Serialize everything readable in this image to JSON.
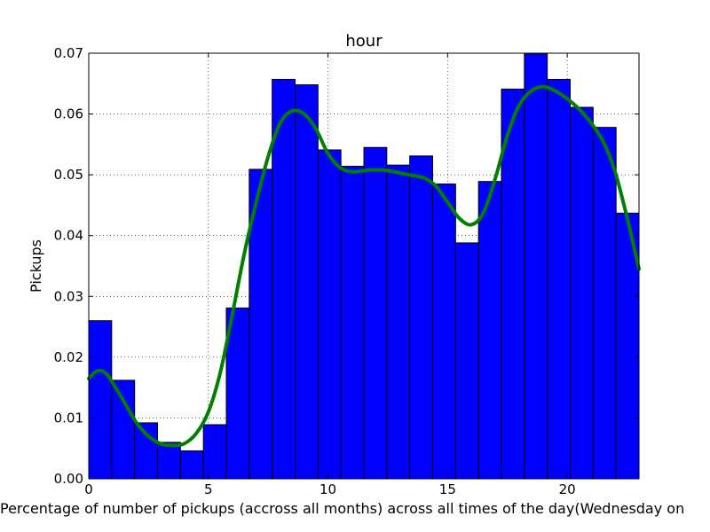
{
  "chart_data": {
    "type": "bar",
    "title": "hour",
    "xlabel": "Percentage of number of pickups (accross all months) across all times of the day(Wednesday on",
    "ylabel": "Pickups",
    "xlim": [
      0,
      23
    ],
    "ylim": [
      0,
      0.07
    ],
    "grid": true,
    "x_ticks": [
      0,
      5,
      10,
      15,
      20
    ],
    "x_tick_labels": [
      "0",
      "5",
      "10",
      "15",
      "20"
    ],
    "y_ticks": [
      0,
      0.01,
      0.02,
      0.03,
      0.04,
      0.05,
      0.06,
      0.07
    ],
    "y_tick_labels": [
      "0.00",
      "0.01",
      "0.02",
      "0.03",
      "0.04",
      "0.05",
      "0.06",
      "0.07"
    ],
    "bins": [
      {
        "x0": 0.0,
        "x1": 0.958,
        "value": 0.026
      },
      {
        "x0": 0.958,
        "x1": 1.917,
        "value": 0.0162
      },
      {
        "x0": 1.917,
        "x1": 2.875,
        "value": 0.0092
      },
      {
        "x0": 2.875,
        "x1": 3.833,
        "value": 0.006
      },
      {
        "x0": 3.833,
        "x1": 4.792,
        "value": 0.0046
      },
      {
        "x0": 4.792,
        "x1": 5.75,
        "value": 0.0089
      },
      {
        "x0": 5.75,
        "x1": 6.708,
        "value": 0.0281
      },
      {
        "x0": 6.708,
        "x1": 7.667,
        "value": 0.0509
      },
      {
        "x0": 7.667,
        "x1": 8.625,
        "value": 0.0657
      },
      {
        "x0": 8.625,
        "x1": 9.583,
        "value": 0.0648
      },
      {
        "x0": 9.583,
        "x1": 10.542,
        "value": 0.0541
      },
      {
        "x0": 10.542,
        "x1": 11.5,
        "value": 0.0514
      },
      {
        "x0": 11.5,
        "x1": 12.458,
        "value": 0.0545
      },
      {
        "x0": 12.458,
        "x1": 13.417,
        "value": 0.0516
      },
      {
        "x0": 13.417,
        "x1": 14.375,
        "value": 0.0531
      },
      {
        "x0": 14.375,
        "x1": 15.333,
        "value": 0.0485
      },
      {
        "x0": 15.333,
        "x1": 16.292,
        "value": 0.0388
      },
      {
        "x0": 16.292,
        "x1": 17.25,
        "value": 0.0489
      },
      {
        "x0": 17.25,
        "x1": 18.208,
        "value": 0.0641
      },
      {
        "x0": 18.208,
        "x1": 19.167,
        "value": 0.0699
      },
      {
        "x0": 19.167,
        "x1": 20.125,
        "value": 0.0657
      },
      {
        "x0": 20.125,
        "x1": 21.083,
        "value": 0.0611
      },
      {
        "x0": 21.083,
        "x1": 22.042,
        "value": 0.0578
      },
      {
        "x0": 22.042,
        "x1": 23.0,
        "value": 0.0437
      }
    ],
    "density_curve": {
      "x": [
        0,
        0.25,
        0.5,
        0.75,
        1.0,
        1.5,
        2.0,
        2.5,
        3.0,
        3.5,
        4.0,
        4.5,
        5.0,
        5.5,
        6.0,
        6.5,
        7.0,
        7.5,
        8.0,
        8.5,
        9.0,
        9.5,
        10.0,
        10.5,
        11.0,
        11.5,
        12.0,
        12.5,
        13.0,
        13.5,
        14.0,
        14.5,
        15.0,
        15.5,
        16.0,
        16.5,
        17.0,
        17.5,
        18.0,
        18.5,
        19.0,
        19.5,
        20.0,
        20.5,
        21.0,
        21.5,
        22.0,
        22.5,
        23.0
      ],
      "y": [
        0.0165,
        0.0175,
        0.0178,
        0.0172,
        0.0158,
        0.0125,
        0.0092,
        0.007,
        0.0058,
        0.0055,
        0.0058,
        0.0075,
        0.011,
        0.0175,
        0.027,
        0.037,
        0.0455,
        0.053,
        0.0585,
        0.0605,
        0.06,
        0.0575,
        0.0535,
        0.0512,
        0.0505,
        0.0507,
        0.0508,
        0.0507,
        0.0503,
        0.0499,
        0.0495,
        0.0482,
        0.0455,
        0.0428,
        0.0418,
        0.0438,
        0.0495,
        0.0565,
        0.0615,
        0.0638,
        0.0645,
        0.0638,
        0.0625,
        0.0608,
        0.0585,
        0.0555,
        0.0505,
        0.043,
        0.0345
      ],
      "color": "#007f00"
    },
    "bar_color": "#0000ff",
    "bar_edge_color": "#000000"
  }
}
